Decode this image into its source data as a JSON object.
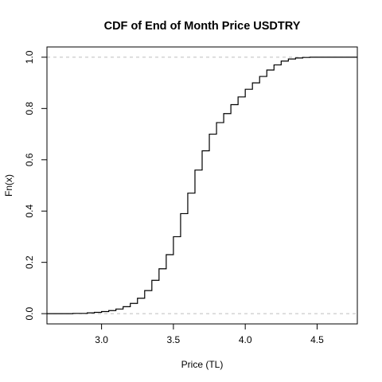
{
  "chart_data": {
    "type": "line",
    "title": "CDF of End of Month Price USDTRY",
    "xlabel": "Price (TL)",
    "ylabel": "Fn(x)",
    "xlim": [
      2.62,
      4.78
    ],
    "ylim": [
      -0.04,
      1.04
    ],
    "xticks": [
      3.0,
      3.5,
      4.0,
      4.5
    ],
    "xtick_labels": [
      "3.0",
      "3.5",
      "4.0",
      "4.5"
    ],
    "yticks": [
      0.0,
      0.2,
      0.4,
      0.6,
      0.8,
      1.0
    ],
    "ytick_labels": [
      "0.0",
      "0.2",
      "0.4",
      "0.6",
      "0.8",
      "1.0"
    ],
    "reference_lines_y": [
      0,
      1
    ],
    "grid": false,
    "series": [
      {
        "x": [
          2.62,
          2.7,
          2.8,
          2.9,
          2.95,
          3.0,
          3.05,
          3.1,
          3.15,
          3.2,
          3.25,
          3.3,
          3.35,
          3.4,
          3.45,
          3.5,
          3.55,
          3.6,
          3.65,
          3.7,
          3.75,
          3.8,
          3.85,
          3.9,
          3.95,
          4.0,
          4.05,
          4.1,
          4.15,
          4.2,
          4.25,
          4.3,
          4.35,
          4.4,
          4.45,
          4.5,
          4.6,
          4.78
        ],
        "y": [
          0.0,
          0.0,
          0.001,
          0.003,
          0.005,
          0.008,
          0.012,
          0.018,
          0.027,
          0.04,
          0.06,
          0.09,
          0.13,
          0.175,
          0.23,
          0.3,
          0.39,
          0.47,
          0.56,
          0.635,
          0.7,
          0.745,
          0.78,
          0.815,
          0.845,
          0.875,
          0.9,
          0.925,
          0.95,
          0.97,
          0.985,
          0.993,
          0.997,
          0.999,
          1.0,
          1.0,
          1.0,
          1.0
        ]
      }
    ]
  }
}
